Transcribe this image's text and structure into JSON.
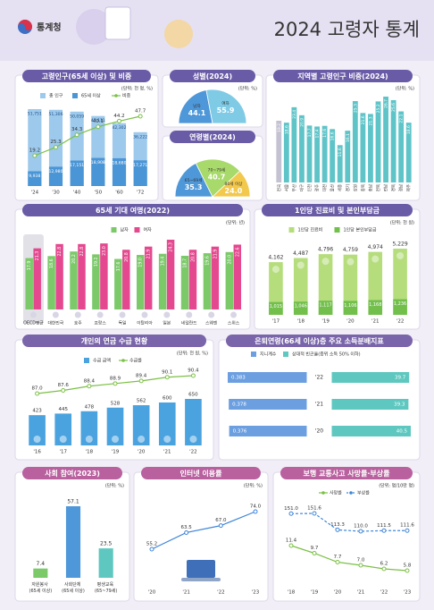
{
  "header": {
    "logo": "통계청",
    "title": "2024 고령자 통계"
  },
  "chart_data": [
    {
      "type": "combo",
      "title": "고령인구(65세 이상) 및 비중",
      "unit": "(단위: 천 명, %)",
      "categories": [
        "'24",
        "'30",
        "'40",
        "'50",
        "'60",
        "'72"
      ],
      "series": [
        {
          "name": "총 인구",
          "color": "#9cc9ec",
          "values": [
            51751,
            51306,
            50059,
            47111,
            42302,
            36222
          ],
          "value_labels": [
            "51,751",
            "51,306",
            "50,059",
            "47,111",
            "42,302",
            "36,222"
          ]
        },
        {
          "name": "65세 이상",
          "color": "#4a95d6",
          "values": [
            9938,
            12980,
            17151,
            18908,
            18680,
            17271
          ],
          "value_labels": [
            "9,938",
            "12,980",
            "17,151",
            "18,908",
            "18,680",
            "17,271"
          ]
        },
        {
          "name": "비중",
          "color": "#7cc046",
          "type": "line",
          "values": [
            19.2,
            25.3,
            34.3,
            40.1,
            44.2,
            47.7
          ]
        }
      ]
    },
    {
      "type": "pie",
      "title": "성별(2024)",
      "unit": "(단위: %)",
      "categories": [
        "남자",
        "여자"
      ],
      "values": [
        44.1,
        55.9
      ],
      "colors": [
        "#4e97d8",
        "#7fcbe6"
      ]
    },
    {
      "type": "pie",
      "title": "연령별(2024)",
      "categories": [
        "65~69세",
        "70~79세",
        "80세 이상"
      ],
      "values": [
        35.3,
        40.7,
        24
      ],
      "value_labels": [
        "35.3",
        "40.7",
        "24.0"
      ],
      "colors": [
        "#4e97d8",
        "#a8d96b",
        "#f2c94c"
      ]
    },
    {
      "type": "bar",
      "title": "지역별 고령인구 비중(2024)",
      "unit": "(단위: %)",
      "categories": [
        "전국",
        "서울",
        "부산",
        "대구",
        "인천",
        "광주",
        "대전",
        "울산",
        "세종",
        "경기",
        "강원",
        "충북",
        "충남",
        "전북",
        "전남",
        "경북",
        "경남",
        "제주"
      ],
      "values": [
        19.2,
        18.6,
        23.4,
        20.9,
        17.7,
        17.4,
        17.6,
        16.6,
        11.6,
        16.1,
        25.3,
        21.6,
        21.3,
        25.2,
        26.7,
        25.6,
        22.1,
        18.6
      ],
      "colors": [
        "#c4c2d2",
        "#5ec4c8",
        "#5ec4c8",
        "#5ec4c8",
        "#5ec4c8",
        "#5ec4c8",
        "#5ec4c8",
        "#5ec4c8",
        "#5ec4c8",
        "#5ec4c8",
        "#5ec4c8",
        "#5ec4c8",
        "#5ec4c8",
        "#5ec4c8",
        "#5ec4c8",
        "#5ec4c8",
        "#5ec4c8",
        "#5ec4c8"
      ]
    },
    {
      "type": "grouped",
      "title": "65세 기대 여명(2022)",
      "unit": "(단위: 년)",
      "categories": [
        "OECD평균",
        "대한민국",
        "호주",
        "프랑스",
        "독일",
        "이탈리아",
        "일본",
        "네덜란드",
        "스웨덴",
        "스위스"
      ],
      "series": [
        {
          "name": "남자",
          "color": "#7cc96a",
          "values": [
            17.9,
            18.6,
            20.2,
            19.2,
            17.6,
            19,
            19.4,
            18.7,
            19.6,
            20
          ],
          "value_labels": [
            "17.9",
            "18.6",
            "20.2",
            "19.2",
            "17.6",
            "19.0",
            "19.4",
            "18.7",
            "19.6",
            "20.0"
          ]
        },
        {
          "name": "여자",
          "color": "#e4488f",
          "values": [
            21.3,
            22.8,
            22.8,
            23,
            20.8,
            21.9,
            24.3,
            20.8,
            21.9,
            22.6
          ],
          "value_labels": [
            "21.3",
            "22.8",
            "22.8",
            "23.0",
            "20.8",
            "21.9",
            "24.3",
            "20.8",
            "21.9",
            "22.6"
          ]
        }
      ]
    },
    {
      "type": "overlap",
      "title": "1인당 진료비 및 본인부담금",
      "unit": "(단위: 천 원)",
      "categories": [
        "'17",
        "'18",
        "'19",
        "'20",
        "'21",
        "'22"
      ],
      "series": [
        {
          "name": "1인당 진료비",
          "color": "#b5dd7c",
          "values": [
            4162,
            4487,
            4796,
            4759,
            4974,
            5229
          ],
          "value_labels": [
            "4,162",
            "4,487",
            "4,796",
            "4,759",
            "4,974",
            "5,229"
          ]
        },
        {
          "name": "1인당 본인부담금",
          "color": "#72bf4c",
          "values": [
            1015,
            1046,
            1117,
            1106,
            1168,
            1236
          ],
          "value_labels": [
            "1,015",
            "1,046",
            "1,117",
            "1,106",
            "1,168",
            "1,236"
          ]
        }
      ]
    },
    {
      "type": "combo",
      "title": "개인의 연금 수급 현황",
      "unit": "(단위: 천 원, %)",
      "categories": [
        "'16",
        "'17",
        "'18",
        "'19",
        "'20",
        "'21",
        "'22"
      ],
      "series": [
        {
          "name": "수급 금액",
          "color": "#4aa3df",
          "values": [
            423,
            445,
            478,
            528,
            562,
            600,
            650
          ]
        },
        {
          "name": "수급률",
          "color": "#7cc046",
          "type": "line",
          "values": [
            87,
            87.6,
            88.4,
            88.9,
            89.4,
            90.1,
            90.4
          ],
          "value_labels": [
            "87.0",
            "87.6",
            "88.4",
            "88.9",
            "89.4",
            "90.1",
            "90.4"
          ]
        }
      ]
    },
    {
      "type": "butterfly",
      "title": "은퇴연령(66세 이상)층 주요 소득분배지표",
      "categories": [
        "'22",
        "'21",
        "'20"
      ],
      "series": [
        {
          "name": "지니계수",
          "color": "#6c9fe0",
          "values": [
            0.383,
            0.378,
            0.376
          ]
        },
        {
          "name": "상대적 빈곤율(중위 소득 50% 이하)",
          "color": "#5ec8c0",
          "values": [
            39.7,
            39.3,
            40.5
          ]
        }
      ]
    },
    {
      "type": "bar",
      "title": "사회 참여(2023)",
      "unit": "(단위: %)",
      "categories": [
        "자원봉사 (65세 이상)",
        "사회단체 (65세 이상)",
        "평생교육 (65~79세)"
      ],
      "values": [
        7.4,
        57.1,
        23.5
      ],
      "colors": [
        "#7cc96a",
        "#4e97d8",
        "#5ec8c0"
      ]
    },
    {
      "type": "line",
      "title": "인터넷 이용률",
      "unit": "(단위: %)",
      "categories": [
        "'20",
        "'21",
        "'22",
        "'23"
      ],
      "values": [
        55.2,
        63.5,
        67,
        74
      ],
      "value_labels": [
        "55.2",
        "63.5",
        "67.0",
        "74.0"
      ],
      "color": "#3f86d8"
    },
    {
      "type": "line",
      "title": "보행 교통사고 사망률·부상률",
      "unit": "(단위: 명/10만 명)",
      "categories": [
        "'18",
        "'19",
        "'20",
        "'21",
        "'22",
        "'23"
      ],
      "series": [
        {
          "name": "사망률",
          "color": "#7cc046",
          "values": [
            11.4,
            9.7,
            7.7,
            7,
            6.2,
            5.8
          ],
          "value_labels": [
            "11.4",
            "9.7",
            "7.7",
            "7.0",
            "6.2",
            "5.8"
          ]
        },
        {
          "name": "부상률",
          "color": "#3f86d8",
          "dash": true,
          "values": [
            151,
            151.6,
            113.3,
            110,
            111.5,
            111.6
          ],
          "value_labels": [
            "151.0",
            "151.6",
            "113.3",
            "110.0",
            "111.5",
            "111.6"
          ]
        }
      ]
    }
  ]
}
